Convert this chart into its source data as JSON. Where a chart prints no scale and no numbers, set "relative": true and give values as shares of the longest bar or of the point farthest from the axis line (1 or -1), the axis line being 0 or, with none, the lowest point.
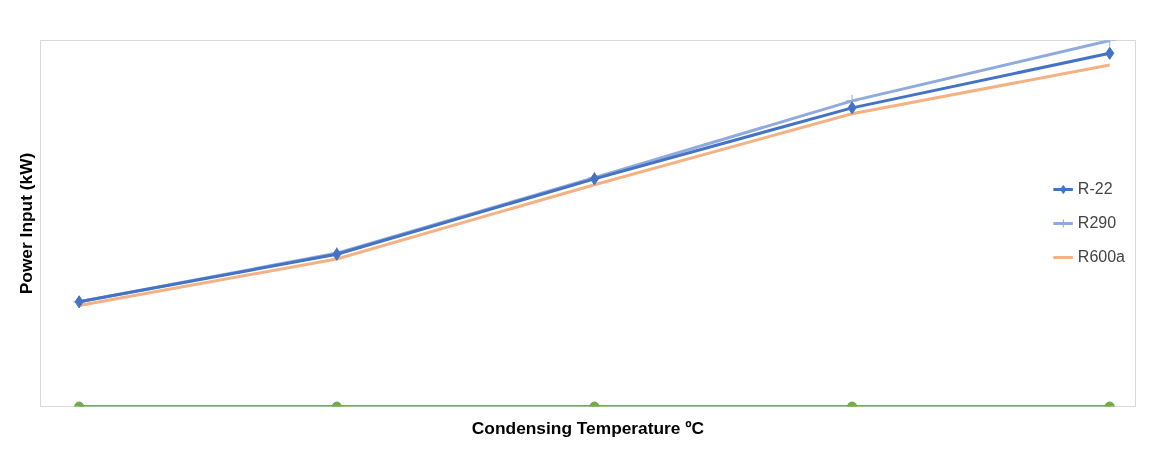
{
  "chart_data": {
    "type": "line",
    "relative": true,
    "xlabel": "Condensing Temperature ºC",
    "ylabel": "Power Input (kW)",
    "categories": [
      null,
      null,
      null,
      null,
      null
    ],
    "legend": "right",
    "grid": false,
    "series": [
      {
        "name": "R-22",
        "color": "#4472c4",
        "marker": "diamond",
        "values": [
          0.286,
          0.416,
          0.622,
          0.816,
          0.965
        ]
      },
      {
        "name": "R290",
        "color": "#8faadc",
        "marker": "cross",
        "values": [
          0.286,
          0.419,
          0.625,
          0.835,
          1
        ]
      },
      {
        "name": "R600a",
        "color": "#f4b183",
        "marker": "none",
        "values": [
          0.276,
          0.403,
          0.606,
          0.8,
          0.933
        ]
      },
      {
        "color": "#70ad47",
        "marker": "circle",
        "values": [
          0,
          0,
          0,
          0,
          0
        ]
      }
    ]
  }
}
